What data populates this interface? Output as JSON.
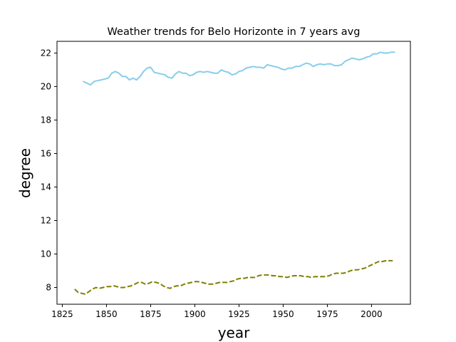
{
  "chart_data": {
    "type": "line",
    "title": "Weather trends for Belo Horizonte in 7 years avg",
    "xlabel": "year",
    "ylabel": "degree",
    "xlim": [
      1822,
      2022
    ],
    "ylim": [
      7.0,
      22.7
    ],
    "xticks": [
      1825,
      1850,
      1875,
      1900,
      1925,
      1950,
      1975,
      2000
    ],
    "yticks": [
      8,
      10,
      12,
      14,
      16,
      18,
      20,
      22
    ],
    "grid": false,
    "legend": "none",
    "series": [
      {
        "color": "#87CEEB",
        "style": "solid",
        "points": [
          [
            1837,
            20.3
          ],
          [
            1839,
            20.2
          ],
          [
            1841,
            20.1
          ],
          [
            1843,
            20.3
          ],
          [
            1845,
            20.35
          ],
          [
            1847,
            20.4
          ],
          [
            1849,
            20.45
          ],
          [
            1851,
            20.5
          ],
          [
            1853,
            20.8
          ],
          [
            1855,
            20.9
          ],
          [
            1857,
            20.8
          ],
          [
            1859,
            20.6
          ],
          [
            1861,
            20.6
          ],
          [
            1863,
            20.4
          ],
          [
            1865,
            20.5
          ],
          [
            1867,
            20.4
          ],
          [
            1869,
            20.6
          ],
          [
            1871,
            20.9
          ],
          [
            1873,
            21.1
          ],
          [
            1875,
            21.15
          ],
          [
            1877,
            20.85
          ],
          [
            1879,
            20.8
          ],
          [
            1881,
            20.75
          ],
          [
            1883,
            20.7
          ],
          [
            1885,
            20.55
          ],
          [
            1887,
            20.5
          ],
          [
            1889,
            20.75
          ],
          [
            1891,
            20.9
          ],
          [
            1893,
            20.8
          ],
          [
            1895,
            20.8
          ],
          [
            1897,
            20.65
          ],
          [
            1899,
            20.7
          ],
          [
            1901,
            20.85
          ],
          [
            1903,
            20.9
          ],
          [
            1905,
            20.85
          ],
          [
            1907,
            20.9
          ],
          [
            1909,
            20.85
          ],
          [
            1911,
            20.8
          ],
          [
            1913,
            20.8
          ],
          [
            1915,
            21.0
          ],
          [
            1917,
            20.9
          ],
          [
            1919,
            20.85
          ],
          [
            1921,
            20.7
          ],
          [
            1923,
            20.75
          ],
          [
            1925,
            20.9
          ],
          [
            1927,
            20.95
          ],
          [
            1929,
            21.1
          ],
          [
            1931,
            21.15
          ],
          [
            1933,
            21.2
          ],
          [
            1935,
            21.15
          ],
          [
            1937,
            21.15
          ],
          [
            1939,
            21.1
          ],
          [
            1941,
            21.3
          ],
          [
            1943,
            21.25
          ],
          [
            1945,
            21.2
          ],
          [
            1947,
            21.15
          ],
          [
            1949,
            21.05
          ],
          [
            1951,
            21.0
          ],
          [
            1953,
            21.1
          ],
          [
            1955,
            21.1
          ],
          [
            1957,
            21.2
          ],
          [
            1959,
            21.2
          ],
          [
            1961,
            21.3
          ],
          [
            1963,
            21.4
          ],
          [
            1965,
            21.35
          ],
          [
            1967,
            21.2
          ],
          [
            1969,
            21.3
          ],
          [
            1971,
            21.35
          ],
          [
            1973,
            21.3
          ],
          [
            1975,
            21.35
          ],
          [
            1977,
            21.35
          ],
          [
            1979,
            21.25
          ],
          [
            1981,
            21.25
          ],
          [
            1983,
            21.3
          ],
          [
            1985,
            21.5
          ],
          [
            1987,
            21.6
          ],
          [
            1989,
            21.7
          ],
          [
            1991,
            21.65
          ],
          [
            1993,
            21.6
          ],
          [
            1995,
            21.65
          ],
          [
            1997,
            21.75
          ],
          [
            1999,
            21.8
          ],
          [
            2001,
            21.95
          ],
          [
            2003,
            21.95
          ],
          [
            2005,
            22.05
          ],
          [
            2007,
            22.0
          ],
          [
            2009,
            22.0
          ],
          [
            2011,
            22.05
          ],
          [
            2013,
            22.05
          ]
        ]
      },
      {
        "color": "#808000",
        "style": "dashed",
        "points": [
          [
            1832,
            7.9
          ],
          [
            1834,
            7.7
          ],
          [
            1836,
            7.65
          ],
          [
            1838,
            7.6
          ],
          [
            1840,
            7.75
          ],
          [
            1842,
            7.9
          ],
          [
            1844,
            8.0
          ],
          [
            1846,
            7.95
          ],
          [
            1848,
            8.0
          ],
          [
            1850,
            8.05
          ],
          [
            1852,
            8.05
          ],
          [
            1854,
            8.1
          ],
          [
            1856,
            8.05
          ],
          [
            1858,
            8.0
          ],
          [
            1860,
            8.0
          ],
          [
            1862,
            8.05
          ],
          [
            1864,
            8.1
          ],
          [
            1866,
            8.2
          ],
          [
            1868,
            8.3
          ],
          [
            1870,
            8.3
          ],
          [
            1872,
            8.2
          ],
          [
            1874,
            8.25
          ],
          [
            1876,
            8.35
          ],
          [
            1878,
            8.3
          ],
          [
            1880,
            8.25
          ],
          [
            1882,
            8.1
          ],
          [
            1884,
            8.0
          ],
          [
            1886,
            7.95
          ],
          [
            1888,
            8.05
          ],
          [
            1890,
            8.1
          ],
          [
            1892,
            8.1
          ],
          [
            1894,
            8.2
          ],
          [
            1896,
            8.25
          ],
          [
            1898,
            8.3
          ],
          [
            1900,
            8.35
          ],
          [
            1902,
            8.35
          ],
          [
            1904,
            8.3
          ],
          [
            1906,
            8.25
          ],
          [
            1908,
            8.2
          ],
          [
            1910,
            8.2
          ],
          [
            1912,
            8.25
          ],
          [
            1914,
            8.3
          ],
          [
            1916,
            8.3
          ],
          [
            1918,
            8.3
          ],
          [
            1920,
            8.35
          ],
          [
            1922,
            8.4
          ],
          [
            1924,
            8.5
          ],
          [
            1926,
            8.55
          ],
          [
            1928,
            8.55
          ],
          [
            1930,
            8.6
          ],
          [
            1932,
            8.6
          ],
          [
            1934,
            8.6
          ],
          [
            1936,
            8.7
          ],
          [
            1938,
            8.75
          ],
          [
            1940,
            8.75
          ],
          [
            1942,
            8.75
          ],
          [
            1944,
            8.7
          ],
          [
            1946,
            8.7
          ],
          [
            1948,
            8.65
          ],
          [
            1950,
            8.65
          ],
          [
            1952,
            8.6
          ],
          [
            1954,
            8.65
          ],
          [
            1956,
            8.7
          ],
          [
            1958,
            8.7
          ],
          [
            1960,
            8.7
          ],
          [
            1962,
            8.65
          ],
          [
            1964,
            8.65
          ],
          [
            1966,
            8.6
          ],
          [
            1968,
            8.65
          ],
          [
            1970,
            8.65
          ],
          [
            1972,
            8.65
          ],
          [
            1974,
            8.65
          ],
          [
            1976,
            8.7
          ],
          [
            1978,
            8.8
          ],
          [
            1980,
            8.85
          ],
          [
            1982,
            8.85
          ],
          [
            1984,
            8.85
          ],
          [
            1986,
            8.9
          ],
          [
            1988,
            9.0
          ],
          [
            1990,
            9.05
          ],
          [
            1992,
            9.05
          ],
          [
            1994,
            9.1
          ],
          [
            1996,
            9.15
          ],
          [
            1998,
            9.25
          ],
          [
            2000,
            9.35
          ],
          [
            2002,
            9.45
          ],
          [
            2004,
            9.55
          ],
          [
            2006,
            9.55
          ],
          [
            2008,
            9.6
          ],
          [
            2010,
            9.6
          ],
          [
            2012,
            9.6
          ]
        ]
      }
    ]
  }
}
